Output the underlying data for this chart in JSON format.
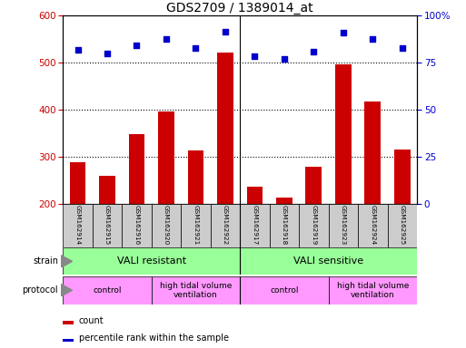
{
  "title": "GDS2709 / 1389014_at",
  "categories": [
    "GSM162914",
    "GSM162915",
    "GSM162916",
    "GSM162920",
    "GSM162921",
    "GSM162922",
    "GSM162917",
    "GSM162918",
    "GSM162919",
    "GSM162923",
    "GSM162924",
    "GSM162925"
  ],
  "bar_values": [
    288,
    260,
    348,
    397,
    313,
    521,
    235,
    212,
    278,
    497,
    418,
    315
  ],
  "dot_values": [
    527,
    519,
    537,
    550,
    531,
    566,
    514,
    508,
    524,
    563,
    551,
    531
  ],
  "ylim_left": [
    200,
    600
  ],
  "ylim_right": [
    0,
    100
  ],
  "yticks_left": [
    200,
    300,
    400,
    500,
    600
  ],
  "yticks_right": [
    0,
    25,
    50,
    75,
    100
  ],
  "bar_color": "#cc0000",
  "dot_color": "#0000cc",
  "bar_bottom": 200,
  "strain_labels": [
    "VALI resistant",
    "VALI sensitive"
  ],
  "strain_color": "#99ff99",
  "protocol_labels": [
    "control",
    "high tidal volume\nventilation",
    "control",
    "high tidal volume\nventilation"
  ],
  "protocol_color": "#ff99ff",
  "protocol_color2": "#ee88ee",
  "legend_count_label": "count",
  "legend_pct_label": "percentile rank within the sample",
  "axis_label_color_left": "#cc0000",
  "axis_label_color_right": "#0000cc",
  "title_fontsize": 10,
  "label_box_color": "#cccccc",
  "separator_color": "#008800",
  "bg_color": "#ffffff"
}
